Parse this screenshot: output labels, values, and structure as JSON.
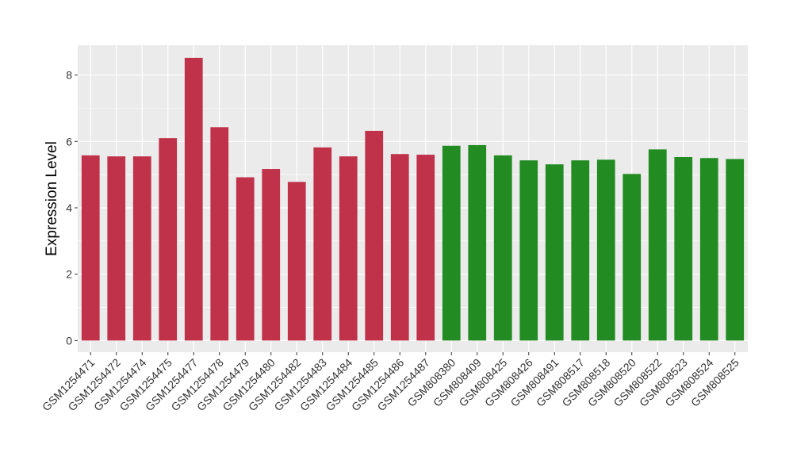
{
  "chart_data": {
    "type": "bar",
    "title": "",
    "xlabel": "",
    "ylabel": "Expression Level",
    "ylim": [
      -0.35,
      8.9
    ],
    "yticks": [
      0,
      2,
      4,
      6,
      8
    ],
    "grid": true,
    "panel_background": "#ebebeb",
    "grid_color": "#ffffff",
    "categories": [
      "GSM1254471",
      "GSM1254472",
      "GSM1254474",
      "GSM1254475",
      "GSM1254477",
      "GSM1254478",
      "GSM1254479",
      "GSM1254480",
      "GSM1254482",
      "GSM1254483",
      "GSM1254484",
      "GSM1254485",
      "GSM1254486",
      "GSM1254487",
      "GSM808380",
      "GSM808409",
      "GSM808425",
      "GSM808426",
      "GSM808491",
      "GSM808517",
      "GSM808518",
      "GSM808520",
      "GSM808522",
      "GSM808523",
      "GSM808524",
      "GSM808525"
    ],
    "values": [
      5.58,
      5.55,
      5.55,
      6.1,
      8.52,
      6.43,
      4.92,
      5.17,
      4.78,
      5.82,
      5.55,
      6.32,
      5.62,
      5.6,
      5.87,
      5.89,
      5.58,
      5.43,
      5.31,
      5.43,
      5.45,
      5.02,
      5.76,
      5.53,
      5.5,
      5.47
    ],
    "colors": [
      "#c0314a",
      "#c0314a",
      "#c0314a",
      "#c0314a",
      "#c0314a",
      "#c0314a",
      "#c0314a",
      "#c0314a",
      "#c0314a",
      "#c0314a",
      "#c0314a",
      "#c0314a",
      "#c0314a",
      "#c0314a",
      "#228b22",
      "#228b22",
      "#228b22",
      "#228b22",
      "#228b22",
      "#228b22",
      "#228b22",
      "#228b22",
      "#228b22",
      "#228b22",
      "#228b22",
      "#228b22"
    ]
  }
}
